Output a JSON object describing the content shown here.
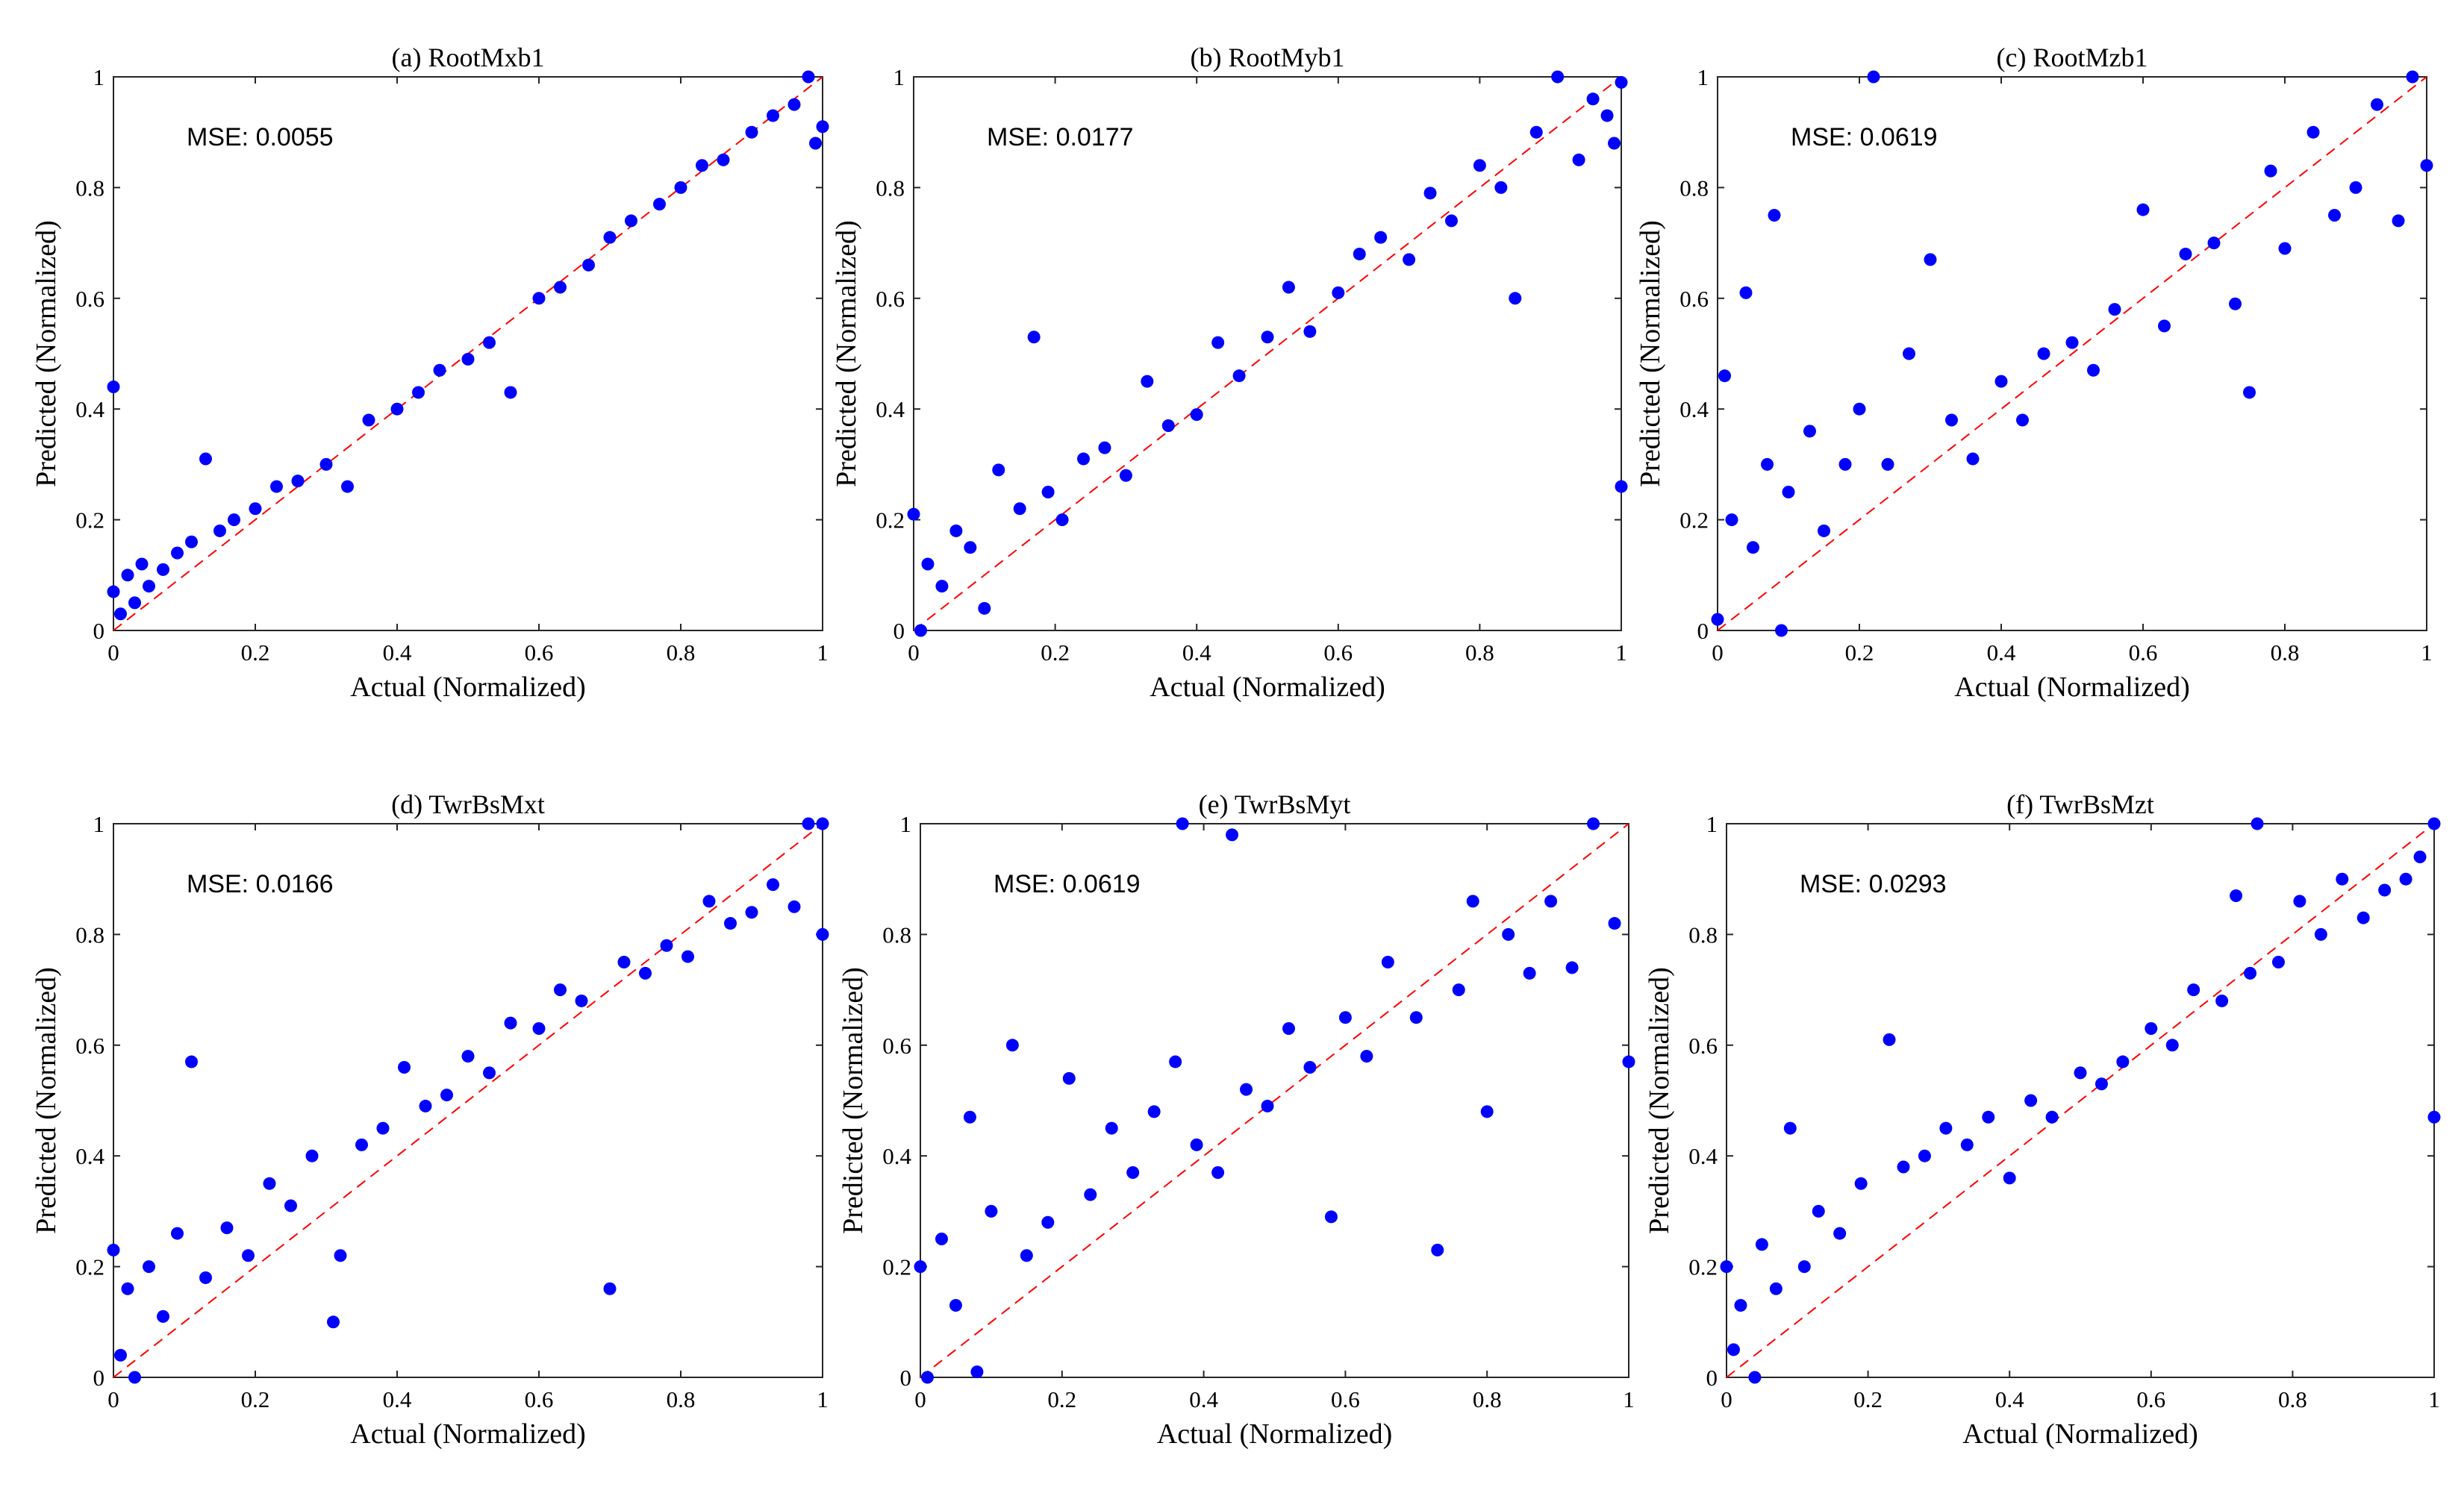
{
  "figure": {
    "point_color": "#0000ff",
    "reference_line_color": "#ff0000"
  },
  "chart_data": [
    {
      "type": "scatter",
      "title": "(a) RootMxb1",
      "xlabel": "Actual (Normalized)",
      "ylabel": "Predicted (Normalized)",
      "mse_text": "MSE: 0.0055",
      "xlim": [
        0,
        1
      ],
      "ylim": [
        0,
        1
      ],
      "xticks": [
        "0",
        "0.2",
        "0.4",
        "0.6",
        "0.8",
        "1"
      ],
      "yticks": [
        "0",
        "0.2",
        "0.4",
        "0.6",
        "0.8",
        "1"
      ],
      "reference_line": "y = x",
      "points": [
        [
          0.0,
          0.44
        ],
        [
          0.0,
          0.07
        ],
        [
          0.01,
          0.03
        ],
        [
          0.02,
          0.1
        ],
        [
          0.03,
          0.05
        ],
        [
          0.04,
          0.12
        ],
        [
          0.05,
          0.08
        ],
        [
          0.07,
          0.11
        ],
        [
          0.09,
          0.14
        ],
        [
          0.11,
          0.16
        ],
        [
          0.13,
          0.31
        ],
        [
          0.15,
          0.18
        ],
        [
          0.17,
          0.2
        ],
        [
          0.2,
          0.22
        ],
        [
          0.23,
          0.26
        ],
        [
          0.26,
          0.27
        ],
        [
          0.3,
          0.3
        ],
        [
          0.33,
          0.26
        ],
        [
          0.36,
          0.38
        ],
        [
          0.4,
          0.4
        ],
        [
          0.43,
          0.43
        ],
        [
          0.46,
          0.47
        ],
        [
          0.5,
          0.49
        ],
        [
          0.53,
          0.52
        ],
        [
          0.56,
          0.43
        ],
        [
          0.6,
          0.6
        ],
        [
          0.63,
          0.62
        ],
        [
          0.67,
          0.66
        ],
        [
          0.7,
          0.71
        ],
        [
          0.73,
          0.74
        ],
        [
          0.77,
          0.77
        ],
        [
          0.8,
          0.8
        ],
        [
          0.83,
          0.84
        ],
        [
          0.86,
          0.85
        ],
        [
          0.9,
          0.9
        ],
        [
          0.93,
          0.93
        ],
        [
          0.96,
          0.95
        ],
        [
          0.98,
          1.0
        ],
        [
          1.0,
          0.91
        ],
        [
          0.99,
          0.88
        ]
      ]
    },
    {
      "type": "scatter",
      "title": "(b) RootMyb1",
      "xlabel": "Actual (Normalized)",
      "ylabel": "Predicted (Normalized)",
      "mse_text": "MSE: 0.0177",
      "xlim": [
        0,
        1
      ],
      "ylim": [
        0,
        1
      ],
      "xticks": [
        "0",
        "0.2",
        "0.4",
        "0.6",
        "0.8",
        "1"
      ],
      "yticks": [
        "0",
        "0.2",
        "0.4",
        "0.6",
        "0.8",
        "1"
      ],
      "reference_line": "y = x",
      "points": [
        [
          0.0,
          0.21
        ],
        [
          0.01,
          0.0
        ],
        [
          0.02,
          0.12
        ],
        [
          0.04,
          0.08
        ],
        [
          0.06,
          0.18
        ],
        [
          0.08,
          0.15
        ],
        [
          0.1,
          0.04
        ],
        [
          0.12,
          0.29
        ],
        [
          0.15,
          0.22
        ],
        [
          0.17,
          0.53
        ],
        [
          0.19,
          0.25
        ],
        [
          0.21,
          0.2
        ],
        [
          0.24,
          0.31
        ],
        [
          0.27,
          0.33
        ],
        [
          0.3,
          0.28
        ],
        [
          0.33,
          0.45
        ],
        [
          0.36,
          0.37
        ],
        [
          0.4,
          0.39
        ],
        [
          0.43,
          0.52
        ],
        [
          0.46,
          0.46
        ],
        [
          0.5,
          0.53
        ],
        [
          0.53,
          0.62
        ],
        [
          0.56,
          0.54
        ],
        [
          0.6,
          0.61
        ],
        [
          0.63,
          0.68
        ],
        [
          0.66,
          0.71
        ],
        [
          0.7,
          0.67
        ],
        [
          0.73,
          0.79
        ],
        [
          0.76,
          0.74
        ],
        [
          0.8,
          0.84
        ],
        [
          0.83,
          0.8
        ],
        [
          0.85,
          0.6
        ],
        [
          0.88,
          0.9
        ],
        [
          0.91,
          1.0
        ],
        [
          0.94,
          0.85
        ],
        [
          0.96,
          0.96
        ],
        [
          0.98,
          0.93
        ],
        [
          1.0,
          0.99
        ],
        [
          1.0,
          0.26
        ],
        [
          0.99,
          0.88
        ]
      ]
    },
    {
      "type": "scatter",
      "title": "(c) RootMzb1",
      "xlabel": "Actual (Normalized)",
      "ylabel": "Predicted (Normalized)",
      "mse_text": "MSE: 0.0619",
      "xlim": [
        0,
        1
      ],
      "ylim": [
        0,
        1
      ],
      "xticks": [
        "0",
        "0.2",
        "0.4",
        "0.6",
        "0.8",
        "1"
      ],
      "yticks": [
        "0",
        "0.2",
        "0.4",
        "0.6",
        "0.8",
        "1"
      ],
      "reference_line": "y = x",
      "points": [
        [
          0.0,
          0.02
        ],
        [
          0.01,
          0.46
        ],
        [
          0.02,
          0.2
        ],
        [
          0.04,
          0.61
        ],
        [
          0.05,
          0.15
        ],
        [
          0.07,
          0.3
        ],
        [
          0.08,
          0.75
        ],
        [
          0.09,
          0.0
        ],
        [
          0.1,
          0.25
        ],
        [
          0.13,
          0.36
        ],
        [
          0.15,
          0.18
        ],
        [
          0.18,
          0.3
        ],
        [
          0.2,
          0.4
        ],
        [
          0.22,
          1.0
        ],
        [
          0.24,
          0.3
        ],
        [
          0.27,
          0.5
        ],
        [
          0.3,
          0.67
        ],
        [
          0.33,
          0.38
        ],
        [
          0.36,
          0.31
        ],
        [
          0.4,
          0.45
        ],
        [
          0.43,
          0.38
        ],
        [
          0.46,
          0.5
        ],
        [
          0.5,
          0.52
        ],
        [
          0.53,
          0.47
        ],
        [
          0.56,
          0.58
        ],
        [
          0.6,
          0.76
        ],
        [
          0.63,
          0.55
        ],
        [
          0.66,
          0.68
        ],
        [
          0.7,
          0.7
        ],
        [
          0.73,
          0.59
        ],
        [
          0.75,
          0.43
        ],
        [
          0.78,
          0.83
        ],
        [
          0.8,
          0.69
        ],
        [
          0.84,
          0.9
        ],
        [
          0.87,
          0.75
        ],
        [
          0.9,
          0.8
        ],
        [
          0.93,
          0.95
        ],
        [
          0.96,
          0.74
        ],
        [
          0.98,
          1.0
        ],
        [
          1.0,
          0.84
        ]
      ]
    },
    {
      "type": "scatter",
      "title": "(d) TwrBsMxt",
      "xlabel": "Actual (Normalized)",
      "ylabel": "Predicted (Normalized)",
      "mse_text": "MSE: 0.0166",
      "xlim": [
        0,
        1
      ],
      "ylim": [
        0,
        1
      ],
      "xticks": [
        "0",
        "0.2",
        "0.4",
        "0.6",
        "0.8",
        "1"
      ],
      "yticks": [
        "0",
        "0.2",
        "0.4",
        "0.6",
        "0.8",
        "1"
      ],
      "reference_line": "y = x",
      "points": [
        [
          0.0,
          0.23
        ],
        [
          0.01,
          0.04
        ],
        [
          0.02,
          0.16
        ],
        [
          0.03,
          0.0
        ],
        [
          0.05,
          0.2
        ],
        [
          0.07,
          0.11
        ],
        [
          0.09,
          0.26
        ],
        [
          0.11,
          0.57
        ],
        [
          0.13,
          0.18
        ],
        [
          0.16,
          0.27
        ],
        [
          0.19,
          0.22
        ],
        [
          0.22,
          0.35
        ],
        [
          0.25,
          0.31
        ],
        [
          0.28,
          0.4
        ],
        [
          0.31,
          0.1
        ],
        [
          0.32,
          0.22
        ],
        [
          0.35,
          0.42
        ],
        [
          0.38,
          0.45
        ],
        [
          0.41,
          0.56
        ],
        [
          0.44,
          0.49
        ],
        [
          0.47,
          0.51
        ],
        [
          0.5,
          0.58
        ],
        [
          0.53,
          0.55
        ],
        [
          0.56,
          0.64
        ],
        [
          0.6,
          0.63
        ],
        [
          0.63,
          0.7
        ],
        [
          0.66,
          0.68
        ],
        [
          0.7,
          0.16
        ],
        [
          0.72,
          0.75
        ],
        [
          0.75,
          0.73
        ],
        [
          0.78,
          0.78
        ],
        [
          0.81,
          0.76
        ],
        [
          0.84,
          0.86
        ],
        [
          0.87,
          0.82
        ],
        [
          0.9,
          0.84
        ],
        [
          0.93,
          0.89
        ],
        [
          0.96,
          0.85
        ],
        [
          0.98,
          1.0
        ],
        [
          1.0,
          1.0
        ],
        [
          1.0,
          0.8
        ]
      ]
    },
    {
      "type": "scatter",
      "title": "(e) TwrBsMyt",
      "xlabel": "Actual (Normalized)",
      "ylabel": "Predicted (Normalized)",
      "mse_text": "MSE: 0.0619",
      "xlim": [
        0,
        1
      ],
      "ylim": [
        0,
        1
      ],
      "xticks": [
        "0",
        "0.2",
        "0.4",
        "0.6",
        "0.8",
        "1"
      ],
      "yticks": [
        "0",
        "0.2",
        "0.4",
        "0.6",
        "0.8",
        "1"
      ],
      "reference_line": "y = x",
      "points": [
        [
          0.0,
          0.2
        ],
        [
          0.01,
          0.0
        ],
        [
          0.03,
          0.25
        ],
        [
          0.05,
          0.13
        ],
        [
          0.07,
          0.47
        ],
        [
          0.08,
          0.01
        ],
        [
          0.1,
          0.3
        ],
        [
          0.13,
          0.6
        ],
        [
          0.15,
          0.22
        ],
        [
          0.18,
          0.28
        ],
        [
          0.21,
          0.54
        ],
        [
          0.24,
          0.33
        ],
        [
          0.27,
          0.45
        ],
        [
          0.3,
          0.37
        ],
        [
          0.33,
          0.48
        ],
        [
          0.36,
          0.57
        ],
        [
          0.37,
          1.0
        ],
        [
          0.39,
          0.42
        ],
        [
          0.42,
          0.37
        ],
        [
          0.44,
          0.98
        ],
        [
          0.46,
          0.52
        ],
        [
          0.49,
          0.49
        ],
        [
          0.52,
          0.63
        ],
        [
          0.55,
          0.56
        ],
        [
          0.58,
          0.29
        ],
        [
          0.6,
          0.65
        ],
        [
          0.63,
          0.58
        ],
        [
          0.66,
          0.75
        ],
        [
          0.7,
          0.65
        ],
        [
          0.73,
          0.23
        ],
        [
          0.76,
          0.7
        ],
        [
          0.78,
          0.86
        ],
        [
          0.8,
          0.48
        ],
        [
          0.83,
          0.8
        ],
        [
          0.86,
          0.73
        ],
        [
          0.89,
          0.86
        ],
        [
          0.92,
          0.74
        ],
        [
          0.95,
          1.0
        ],
        [
          0.98,
          0.82
        ],
        [
          1.0,
          0.57
        ]
      ]
    },
    {
      "type": "scatter",
      "title": "(f) TwrBsMzt",
      "xlabel": "Actual (Normalized)",
      "ylabel": "Predicted (Normalized)",
      "mse_text": "MSE: 0.0293",
      "xlim": [
        0,
        1
      ],
      "ylim": [
        0,
        1
      ],
      "xticks": [
        "0",
        "0.2",
        "0.4",
        "0.6",
        "0.8",
        "1"
      ],
      "yticks": [
        "0",
        "0.2",
        "0.4",
        "0.6",
        "0.8",
        "1"
      ],
      "reference_line": "y = x",
      "points": [
        [
          0.0,
          0.2
        ],
        [
          0.01,
          0.05
        ],
        [
          0.02,
          0.13
        ],
        [
          0.04,
          0.0
        ],
        [
          0.05,
          0.24
        ],
        [
          0.07,
          0.16
        ],
        [
          0.09,
          0.45
        ],
        [
          0.11,
          0.2
        ],
        [
          0.13,
          0.3
        ],
        [
          0.16,
          0.26
        ],
        [
          0.19,
          0.35
        ],
        [
          0.23,
          0.61
        ],
        [
          0.25,
          0.38
        ],
        [
          0.28,
          0.4
        ],
        [
          0.31,
          0.45
        ],
        [
          0.34,
          0.42
        ],
        [
          0.37,
          0.47
        ],
        [
          0.4,
          0.36
        ],
        [
          0.43,
          0.5
        ],
        [
          0.46,
          0.47
        ],
        [
          0.5,
          0.55
        ],
        [
          0.53,
          0.53
        ],
        [
          0.56,
          0.57
        ],
        [
          0.6,
          0.63
        ],
        [
          0.63,
          0.6
        ],
        [
          0.66,
          0.7
        ],
        [
          0.7,
          0.68
        ],
        [
          0.72,
          0.87
        ],
        [
          0.74,
          0.73
        ],
        [
          0.75,
          1.0
        ],
        [
          0.78,
          0.75
        ],
        [
          0.81,
          0.86
        ],
        [
          0.84,
          0.8
        ],
        [
          0.87,
          0.9
        ],
        [
          0.9,
          0.83
        ],
        [
          0.93,
          0.88
        ],
        [
          0.96,
          0.9
        ],
        [
          0.98,
          0.94
        ],
        [
          1.0,
          1.0
        ],
        [
          1.0,
          0.47
        ]
      ]
    }
  ]
}
